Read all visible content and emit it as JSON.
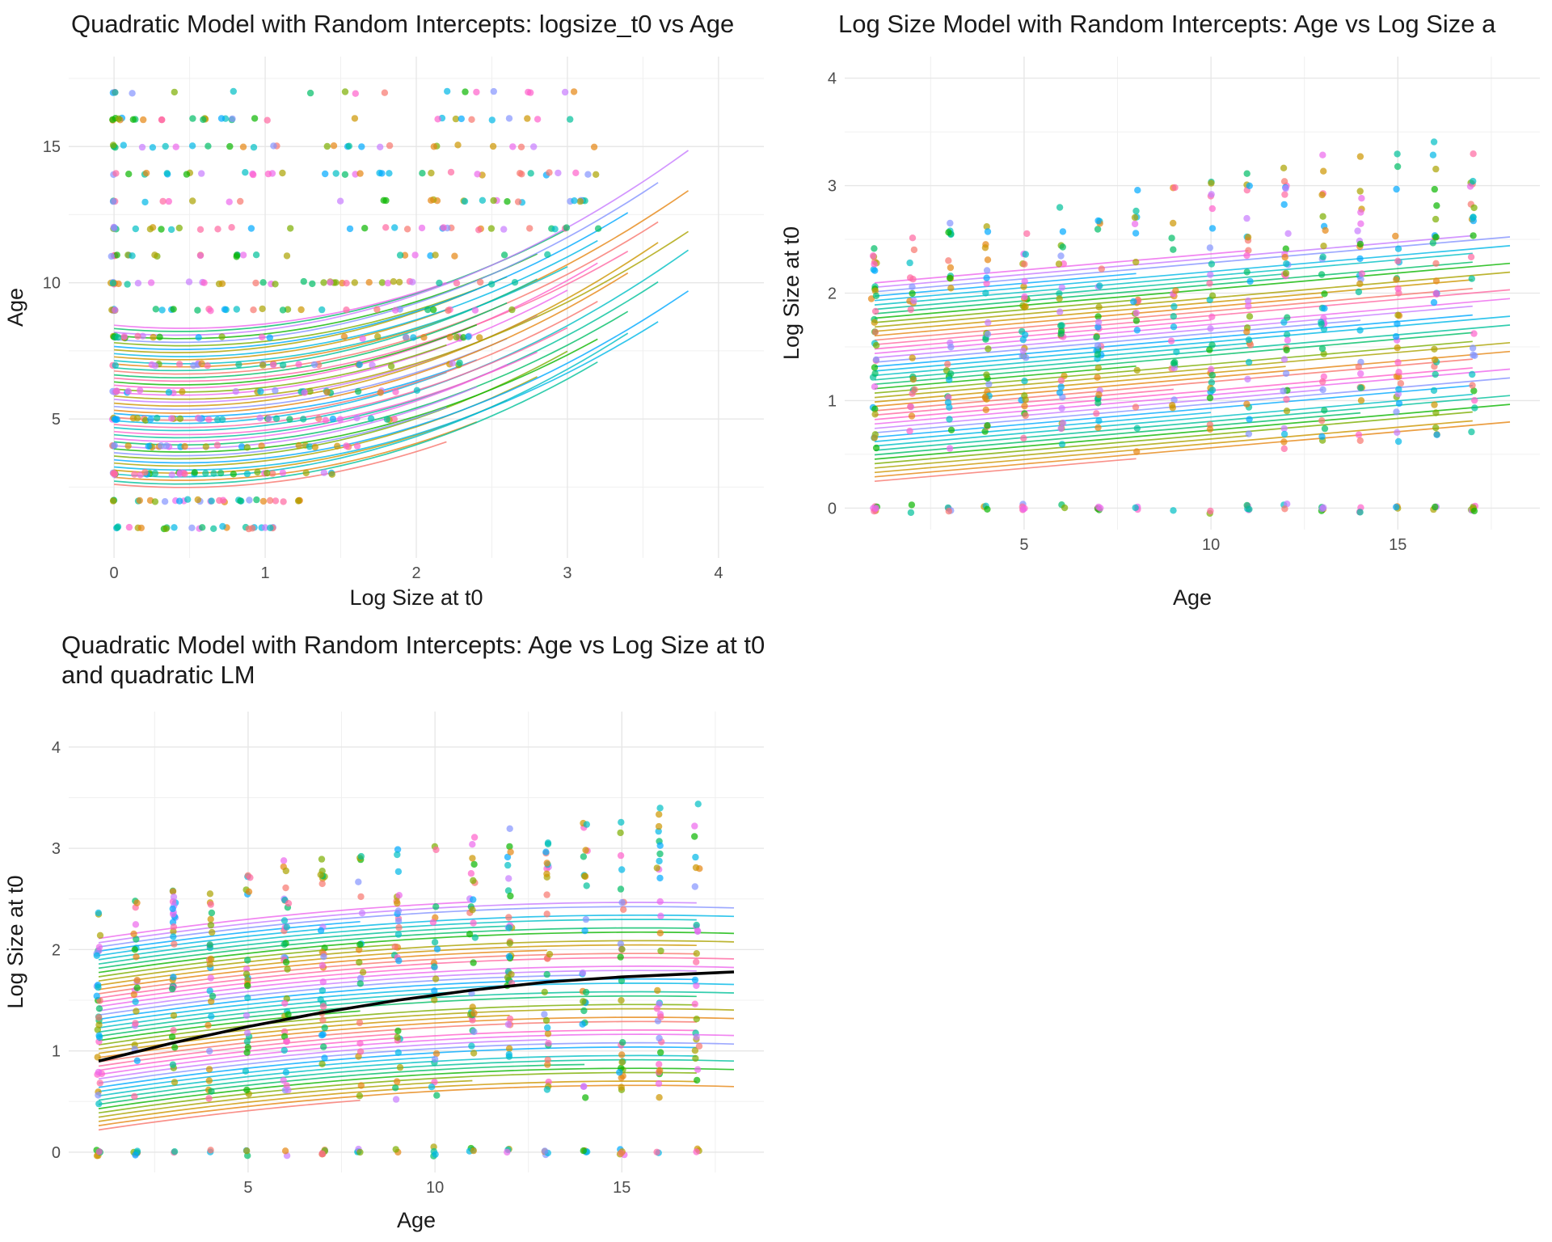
{
  "chart_data": [
    {
      "type": "scatter",
      "title": "Quadratic Model with Random Intercepts: logsize_t0 vs Age",
      "subtitle": "",
      "xlabel": "Log Size at t0",
      "ylabel": "Age",
      "xlim": [
        -0.3,
        4.3
      ],
      "ylim": [
        -0.1,
        18.3
      ],
      "xticks": [
        0,
        1,
        2,
        3,
        4
      ],
      "xtick_labels": [
        "0",
        "1",
        "2",
        "3",
        "4"
      ],
      "yticks": [
        5,
        10,
        15
      ],
      "ytick_labels": [
        "5",
        "10",
        "15"
      ],
      "grid": true,
      "legend": "none",
      "series_lines": "quadratic random-intercept fits, one per group",
      "x_range": [
        0,
        4.1
      ],
      "y_range": [
        1,
        18
      ]
    },
    {
      "type": "scatter",
      "title": "Log Size Model with Random Intercepts: Age vs Log Size a",
      "subtitle": "",
      "xlabel": "Age",
      "ylabel": "Log Size at t0",
      "xlim": [
        0.2,
        18.8
      ],
      "ylim": [
        -0.2,
        4.2
      ],
      "xticks": [
        5,
        10,
        15
      ],
      "xtick_labels": [
        "5",
        "10",
        "15"
      ],
      "yticks": [
        0,
        1,
        2,
        3,
        4
      ],
      "ytick_labels": [
        "0",
        "1",
        "2",
        "3",
        "4"
      ],
      "grid": true,
      "legend": "none",
      "series_lines": "linear random-intercept fits, one per group",
      "x_range": [
        1,
        18
      ],
      "y_range": [
        0,
        4.05
      ]
    },
    {
      "type": "scatter",
      "title": "Quadratic Model with Random Intercepts: Age vs Log Size at t0",
      "subtitle": "and quadratic LM",
      "xlabel": "Age",
      "ylabel": "Log Size at t0",
      "xlim": [
        0.2,
        18.8
      ],
      "ylim": [
        -0.2,
        4.35
      ],
      "xticks": [
        5,
        10,
        15
      ],
      "xtick_labels": [
        "5",
        "10",
        "15"
      ],
      "yticks": [
        0,
        1,
        2,
        3,
        4
      ],
      "ytick_labels": [
        "0",
        "1",
        "2",
        "3",
        "4"
      ],
      "grid": true,
      "legend": "none",
      "series_lines": "quadratic random-intercept fits, one per group",
      "overall_fit": {
        "x": [
          1,
          3,
          5,
          7,
          9,
          11,
          13,
          15,
          18
        ],
        "y": [
          0.9,
          1.08,
          1.24,
          1.38,
          1.5,
          1.6,
          1.68,
          1.73,
          1.78
        ]
      },
      "x_range": [
        1,
        18
      ],
      "y_range": [
        0,
        4.2
      ]
    }
  ],
  "palette": [
    "#F8766D",
    "#E68613",
    "#CD9600",
    "#ABA300",
    "#7CAE00",
    "#0CB702",
    "#00BE67",
    "#00C19A",
    "#00BFC4",
    "#00B8E7",
    "#00A9FF",
    "#8494FF",
    "#C77CFF",
    "#ED68ED",
    "#FF61CC",
    "#FF68A1"
  ],
  "overall_fit_color": "#000000"
}
